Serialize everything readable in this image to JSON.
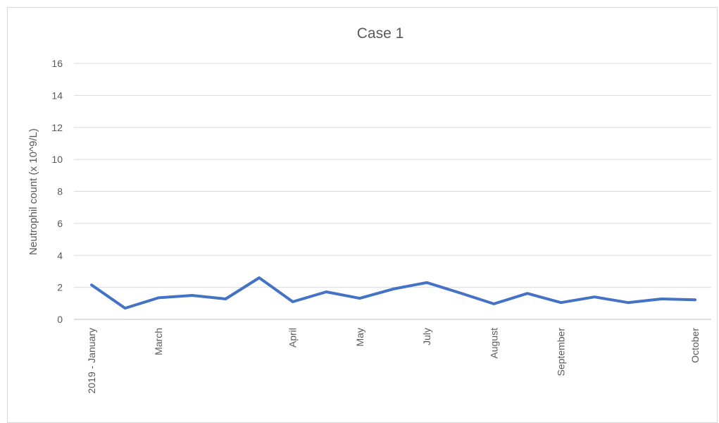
{
  "chart_data": {
    "type": "line",
    "title": "Case 1",
    "xlabel": "",
    "ylabel": "Neutrophil count (x 10^9/L)",
    "ylim": [
      0,
      16
    ],
    "yticks": [
      0,
      2,
      4,
      6,
      8,
      10,
      12,
      14,
      16
    ],
    "grid": true,
    "x": [
      "2019 - January",
      "",
      "March",
      "",
      "",
      "",
      "April",
      "",
      "May",
      "",
      "July",
      "",
      "August",
      "",
      "September",
      "",
      "",
      "",
      "October"
    ],
    "series": [
      {
        "color": "#4472c4",
        "values": [
          2.15,
          0.7,
          1.35,
          1.5,
          1.28,
          2.6,
          1.1,
          1.72,
          1.32,
          1.9,
          2.3,
          1.65,
          0.97,
          1.62,
          1.05,
          1.4,
          1.05,
          1.28,
          1.22
        ]
      }
    ]
  }
}
